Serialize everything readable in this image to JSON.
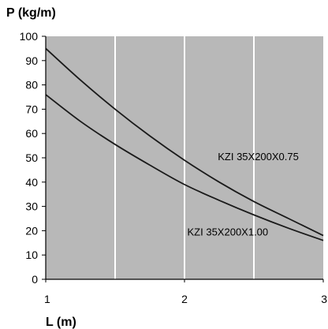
{
  "chart_data": {
    "type": "line",
    "title": "",
    "ylabel": "P (kg/m)",
    "xlabel": "L (m)",
    "xlim": [
      1,
      3
    ],
    "ylim": [
      0,
      100
    ],
    "x_ticks": [
      1,
      2,
      3
    ],
    "x_tick_labels": [
      "1",
      "2",
      "3"
    ],
    "y_ticks": [
      0,
      10,
      20,
      30,
      40,
      50,
      60,
      70,
      80,
      90,
      100
    ],
    "y_tick_labels": [
      "0",
      "10",
      "20",
      "30",
      "40",
      "50",
      "60",
      "70",
      "80",
      "90",
      "100"
    ],
    "grid": true,
    "x_gridlines": [
      1.5,
      2,
      2.5
    ],
    "legend": "none",
    "series": [
      {
        "name": "KZI 35X200X0.75",
        "x": [
          1,
          1.25,
          1.5,
          1.75,
          2,
          2.25,
          2.5,
          2.75,
          3
        ],
        "y": [
          95,
          82,
          70,
          59,
          49,
          40,
          32,
          25,
          18
        ]
      },
      {
        "name": "KZI 35X200X1.00",
        "x": [
          1,
          1.25,
          1.5,
          1.75,
          2,
          2.25,
          2.5,
          2.75,
          3
        ],
        "y": [
          76,
          65,
          55.5,
          47,
          39,
          32.5,
          26.5,
          21,
          16
        ]
      }
    ],
    "colors": {
      "plot_background": "#b8b8b8",
      "gridline": "#ffffff",
      "line": "#1a1a1a",
      "axis": "#000000"
    }
  }
}
